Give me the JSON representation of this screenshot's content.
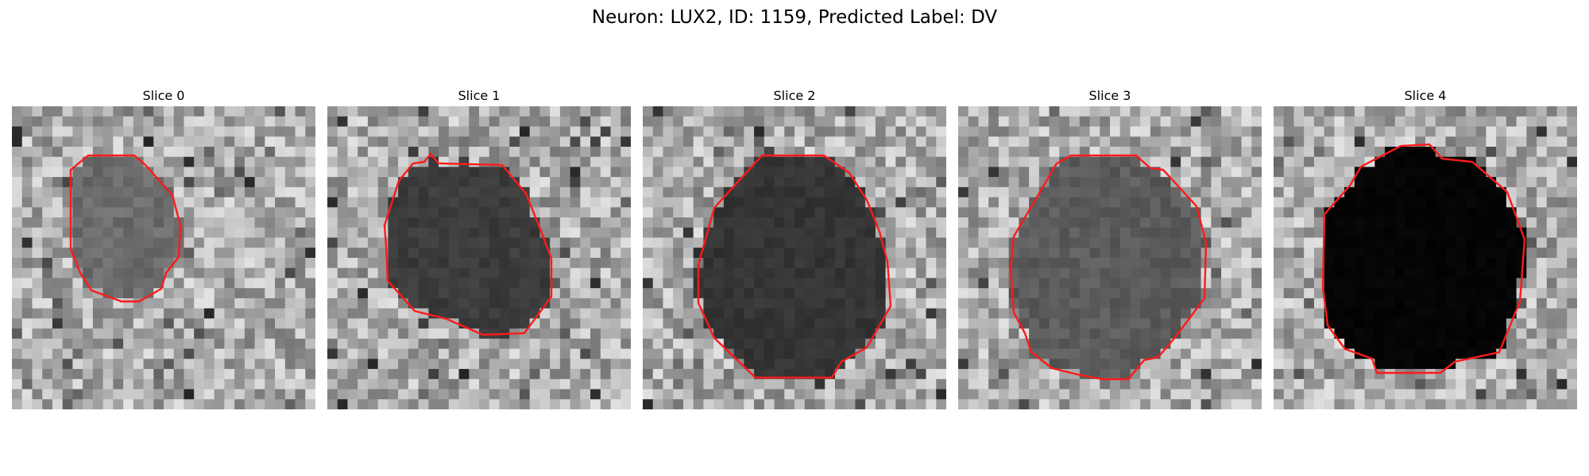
{
  "figure": {
    "title": "Neuron: LUX2, ID: 1159, Predicted Label: DV"
  },
  "contour_color": "#ff1a1a",
  "panels": [
    {
      "title": "Slice 0",
      "cell_darkness": 0.55,
      "seed": 11
    },
    {
      "title": "Slice 1",
      "cell_darkness": 0.75,
      "seed": 23
    },
    {
      "title": "Slice 2",
      "cell_darkness": 0.78,
      "seed": 37
    },
    {
      "title": "Slice 3",
      "cell_darkness": 0.62,
      "seed": 41
    },
    {
      "title": "Slice 4",
      "cell_darkness": 0.98,
      "seed": 53
    }
  ]
}
